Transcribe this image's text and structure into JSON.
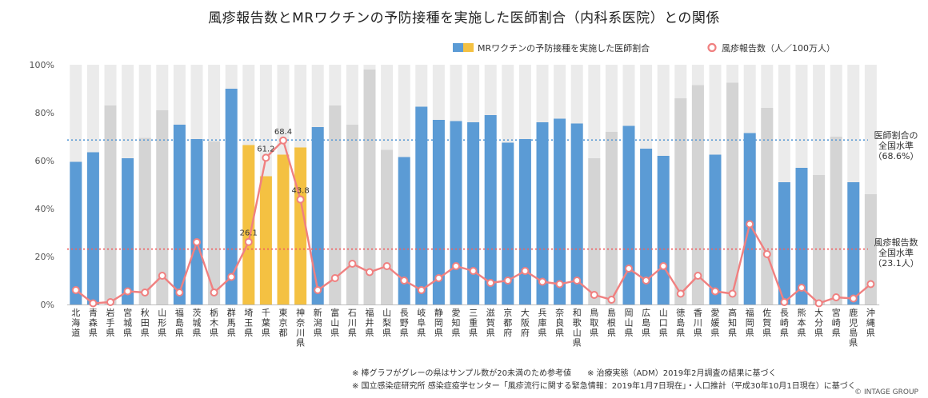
{
  "title": "風疹報告数とMRワクチンの予防接種を実施した医師割合（内科系医院）との関係",
  "notes": {
    "line1": "※ 棒グラフがグレーの県はサンプル数が20未満のため参考値　　※ 治療実態（ADM）2019年2月調査の結果に基づく",
    "line2": "※ 国立感染症研究所 感染症疫学センター「風疹流行に関する緊急情報：2019年1月7日現在」・人口推計（平成30年10月1日現在）に基づく"
  },
  "copyright": "© INTAGE GROUP",
  "colors": {
    "blue": "#5b9bd5",
    "yellow": "#f4c142",
    "gray": "#d4d4d4",
    "background_bar": "#ebebeb",
    "line": "#f08080",
    "ref_blue": "#5b9bd5",
    "ref_red": "#f06060"
  },
  "chart_data": {
    "type": "bar+line",
    "legend": {
      "bar_label": "MRワクチンの予防接種を実施した医師割合",
      "line_label": "風疹報告数（人／100万人）",
      "position": "top-right"
    },
    "y_axis": {
      "ticks": [
        "0%",
        "20%",
        "40%",
        "60%",
        "80%",
        "100%"
      ],
      "ylim": [
        0,
        100
      ]
    },
    "reference_lines": [
      {
        "id": "doctor",
        "value": 68.6,
        "label": [
          "医師割合の",
          "全国水準",
          "（68.6%）"
        ]
      },
      {
        "id": "rubella",
        "value": 23.1,
        "label": [
          "風疹報告数",
          "全国水準",
          "（23.1人）"
        ]
      }
    ],
    "categories": [
      "北海道",
      "青森県",
      "岩手県",
      "宮城県",
      "秋田県",
      "山形県",
      "福島県",
      "茨城県",
      "栃木県",
      "群馬県",
      "埼玉県",
      "千葉県",
      "東京都",
      "神奈川県",
      "新潟県",
      "富山県",
      "石川県",
      "福井県",
      "山梨県",
      "長野県",
      "岐阜県",
      "静岡県",
      "愛知県",
      "三重県",
      "滋賀県",
      "京都府",
      "大阪府",
      "兵庫県",
      "奈良県",
      "和歌山県",
      "鳥取県",
      "島根県",
      "岡山県",
      "広島県",
      "山口県",
      "徳島県",
      "香川県",
      "愛媛県",
      "高知県",
      "福岡県",
      "佐賀県",
      "長崎県",
      "熊本県",
      "大分県",
      "宮崎県",
      "鹿児島県",
      "沖縄県"
    ],
    "bar_values": [
      59.5,
      63.5,
      83,
      61,
      69.5,
      81,
      75,
      69,
      68,
      90,
      66.5,
      53.5,
      62.5,
      65.5,
      74,
      83,
      75,
      98,
      64.5,
      61.5,
      82.5,
      77,
      76.5,
      76,
      79,
      67.5,
      69,
      76,
      77.5,
      75.5,
      61,
      72,
      74.5,
      65,
      62,
      86,
      91.5,
      62.5,
      92.5,
      71.5,
      82,
      51,
      57,
      54,
      70,
      51,
      46
    ],
    "bar_types": [
      "blue",
      "blue",
      "gray",
      "blue",
      "gray",
      "gray",
      "blue",
      "blue",
      "gray",
      "blue",
      "yellow",
      "yellow",
      "yellow",
      "yellow",
      "blue",
      "gray",
      "gray",
      "gray",
      "gray",
      "blue",
      "blue",
      "blue",
      "blue",
      "blue",
      "blue",
      "blue",
      "blue",
      "blue",
      "blue",
      "blue",
      "gray",
      "gray",
      "blue",
      "blue",
      "blue",
      "gray",
      "gray",
      "blue",
      "gray",
      "blue",
      "gray",
      "blue",
      "blue",
      "gray",
      "gray",
      "blue",
      "gray"
    ],
    "line_values": [
      6,
      0.5,
      1,
      5.5,
      5,
      12,
      5,
      26,
      5,
      11.5,
      26.1,
      61.2,
      68.4,
      43.8,
      6,
      11,
      17,
      13.5,
      16,
      10,
      6,
      11,
      16,
      14,
      9,
      10,
      14,
      9.5,
      8.5,
      10,
      4,
      2,
      15,
      10,
      16,
      4.5,
      12,
      5.5,
      4.5,
      33.5,
      21,
      1,
      7,
      0.5,
      3,
      2.5,
      8.5
    ],
    "data_labels": [
      {
        "index": 10,
        "text": "26.1"
      },
      {
        "index": 11,
        "text": "61.2"
      },
      {
        "index": 12,
        "text": "68.4"
      },
      {
        "index": 13,
        "text": "43.8"
      }
    ]
  }
}
